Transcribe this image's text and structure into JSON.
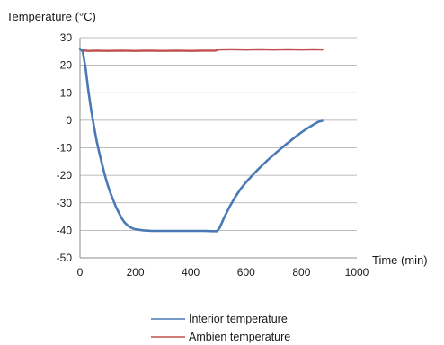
{
  "chart_data": {
    "type": "line",
    "title": "",
    "ylabel": "Temperature (°C)",
    "xlabel": "Time (min)",
    "xlim": [
      0,
      1000
    ],
    "ylim": [
      -50,
      30
    ],
    "x_ticks": [
      0,
      200,
      400,
      600,
      800,
      1000
    ],
    "y_ticks": [
      30,
      20,
      10,
      0,
      -10,
      -20,
      -30,
      -40,
      -50
    ],
    "grid": "horizontal",
    "legend_position": "bottom",
    "series": [
      {
        "name": "Interior temperature",
        "color": "#4a7ab5",
        "x": [
          0,
          10,
          20,
          30,
          40,
          50,
          60,
          70,
          80,
          90,
          100,
          110,
          120,
          130,
          140,
          150,
          160,
          170,
          180,
          190,
          200,
          230,
          260,
          300,
          350,
          400,
          450,
          480,
          495,
          505,
          520,
          540,
          560,
          580,
          600,
          620,
          640,
          660,
          680,
          700,
          720,
          740,
          760,
          780,
          800,
          820,
          840,
          860,
          875
        ],
        "values": [
          26,
          25,
          19,
          11,
          4,
          -2,
          -7.5,
          -12,
          -16,
          -20,
          -23.5,
          -26.5,
          -29,
          -31.5,
          -33.5,
          -35.5,
          -37,
          -38,
          -38.8,
          -39.3,
          -39.6,
          -40,
          -40.2,
          -40.2,
          -40.2,
          -40.2,
          -40.2,
          -40.3,
          -40.3,
          -39,
          -35.5,
          -31.5,
          -28,
          -25,
          -22.5,
          -20.3,
          -18.2,
          -16.2,
          -14.3,
          -12.5,
          -10.8,
          -9.1,
          -7.5,
          -5.9,
          -4.4,
          -3,
          -1.8,
          -0.6,
          -0.2
        ]
      },
      {
        "name": "Ambien temperature",
        "color": "#c0504d",
        "x": [
          0,
          10,
          30,
          60,
          100,
          150,
          200,
          250,
          300,
          350,
          400,
          450,
          490,
          500,
          550,
          600,
          650,
          700,
          750,
          800,
          850,
          875
        ],
        "values": [
          25.8,
          25.4,
          25.2,
          25.3,
          25.2,
          25.3,
          25.2,
          25.3,
          25.2,
          25.3,
          25.2,
          25.3,
          25.3,
          25.7,
          25.8,
          25.7,
          25.8,
          25.7,
          25.8,
          25.7,
          25.8,
          25.7
        ]
      }
    ]
  }
}
